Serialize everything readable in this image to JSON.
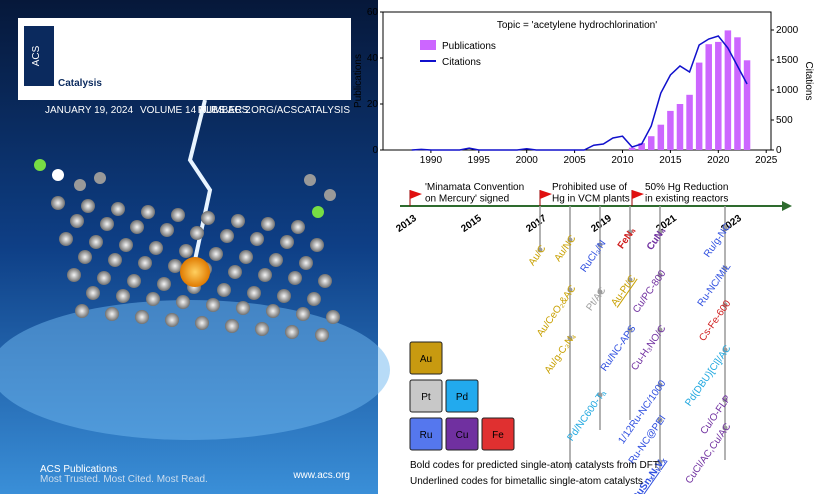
{
  "cover": {
    "logo_small": "ACS",
    "journal": "Catalysis",
    "date": "JANUARY 19, 2024",
    "volume": "VOLUME 14 NUMBER 2",
    "url": "PUBS.ACS.ORG/ACSCATALYSIS",
    "publisher": "ACS Publications",
    "tagline": "Most Trusted. Most Cited. Most Read.",
    "site": "www.acs.org"
  },
  "chart_data": {
    "type": "bar_line",
    "title": "Topic = 'acetylene hydrochlorination'",
    "y_label": "Publications",
    "y2_label": "Citations",
    "xlim": [
      1985,
      2025.5
    ],
    "xticks": [
      1990,
      1995,
      2000,
      2005,
      2010,
      2015,
      2020,
      2025
    ],
    "ylim": [
      0,
      60
    ],
    "yticks": [
      0,
      20,
      40,
      60
    ],
    "y2lim": [
      0,
      2300
    ],
    "y2ticks": [
      0,
      500,
      1000,
      1500,
      2000
    ],
    "legend": "top-left",
    "series": [
      {
        "name": "Publications",
        "type": "bar",
        "color": "#cc66ff",
        "x": [
          2011,
          2012,
          2013,
          2014,
          2015,
          2016,
          2017,
          2018,
          2019,
          2020,
          2021,
          2022,
          2023
        ],
        "values": [
          1,
          3,
          6,
          11,
          17,
          20,
          24,
          38,
          46,
          47,
          52,
          49,
          39
        ]
      },
      {
        "name": "Citations",
        "type": "line",
        "axis": "y2",
        "color": "#1010cc",
        "x": [
          1988,
          1989,
          1990,
          1993,
          1994,
          1995,
          1999,
          2000,
          2001,
          2006,
          2007,
          2008,
          2009,
          2010,
          2011,
          2012,
          2013,
          2014,
          2015,
          2016,
          2017,
          2018,
          2019,
          2020,
          2021,
          2022,
          2023
        ],
        "values": [
          0,
          10,
          0,
          0,
          30,
          0,
          0,
          20,
          0,
          0,
          80,
          100,
          200,
          230,
          50,
          100,
          400,
          950,
          1250,
          1400,
          1300,
          1750,
          1850,
          1900,
          1700,
          1400,
          1100
        ]
      }
    ]
  },
  "timeline": {
    "years": [
      "2013",
      "2015",
      "2017",
      "2019",
      "2021",
      "2023"
    ],
    "events": [
      "'Minamata Convention\non Mercury' signed",
      "Prohibited use of\nHg in VCM plants",
      "50% Hg Reduction\nin existing reactors"
    ],
    "catalysts": [
      {
        "label": "Au/C",
        "color": "#c8a000"
      },
      {
        "label": "Au/NC",
        "color": "#c8a000"
      },
      {
        "label": "RuCl₃/N",
        "color": "#3050e0"
      },
      {
        "label": "Au/CeO₂&AC",
        "color": "#c8a000"
      },
      {
        "label": "Pt/AC",
        "color": "#a0a0a0"
      },
      {
        "label": "Au/g-C₃N₄",
        "color": "#c8a000"
      },
      {
        "label": "Pd/NC600-Tₐ",
        "color": "#20a8e0"
      },
      {
        "label": "FeN₄",
        "color": "#d02020",
        "bold": true
      },
      {
        "label": "Au-Pt/C",
        "color": "#c8a000",
        "underline": true
      },
      {
        "label": "CuN₄",
        "color": "#7030a0",
        "bold": true
      },
      {
        "label": "Cu/PC-800",
        "color": "#7030a0"
      },
      {
        "label": "Ru/NC-APS",
        "color": "#3050e0"
      },
      {
        "label": "Cu-H₃NO/C",
        "color": "#7030a0"
      },
      {
        "label": "1/12Ru-NC/1000",
        "color": "#3050e0"
      },
      {
        "label": "Ru-NC@PEI",
        "color": "#3050e0"
      },
      {
        "label": "RuSnₓNᵧVₓ",
        "color": "#3050e0",
        "bold": true,
        "underline": true
      },
      {
        "label": "Ru/g-NC",
        "color": "#3050e0"
      },
      {
        "label": "Ru-NC/MIL",
        "color": "#3050e0"
      },
      {
        "label": "Cs-Fe-600",
        "color": "#d02020"
      },
      {
        "label": "Pd(DBU)[Cl]/AC",
        "color": "#20a8e0"
      },
      {
        "label": "Cu/O-FLP",
        "color": "#7030a0"
      },
      {
        "label": "CuCl/AC,Cu/AC",
        "color": "#7030a0"
      }
    ],
    "tiles": [
      {
        "label": "Au",
        "color": "#c89a10"
      },
      {
        "label": "Pt",
        "color": "#c8c8c8"
      },
      {
        "label": "Pd",
        "color": "#22aaee"
      },
      {
        "label": "Ru",
        "color": "#5577ee"
      },
      {
        "label": "Cu",
        "color": "#7030a0"
      },
      {
        "label": "Fe",
        "color": "#e03030"
      }
    ],
    "notes": [
      "Bold codes for predicted single-atom catalysts from DFT",
      "Underlined codes for bimetallic single-atom catalysts"
    ]
  }
}
